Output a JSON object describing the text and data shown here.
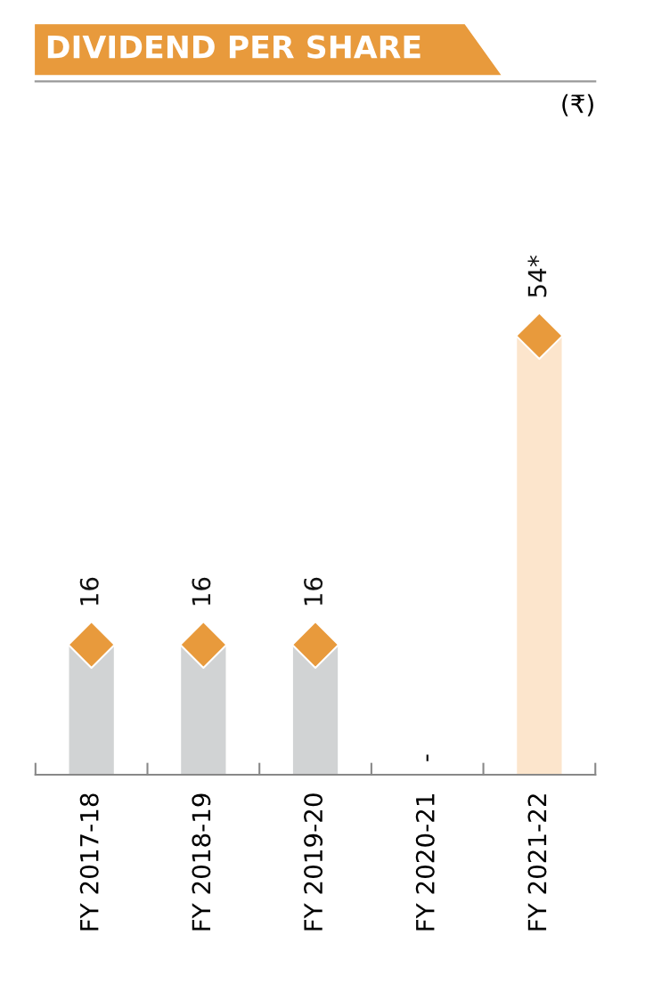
{
  "chart_data": {
    "type": "bar",
    "title": "DIVIDEND PER SHARE",
    "annotations": [
      "(₹)"
    ],
    "categories": [
      "FY 2017-18",
      "FY 2018-19",
      "FY 2019-20",
      "FY 2020-21",
      "FY 2021-22"
    ],
    "series": [
      {
        "colors": [
          "#d1d3d4",
          "#d1d3d4",
          "#d1d3d4",
          "#d1d3d4",
          "#fce5cc"
        ],
        "values": [
          16,
          16,
          16,
          0,
          54
        ],
        "value_labels": [
          "16",
          "16",
          "16",
          "-",
          "54*"
        ]
      },
      {
        "type": "scatter",
        "color": "#e89a3c",
        "values": [
          16,
          16,
          16,
          null,
          54
        ]
      }
    ],
    "marker": "diamond",
    "grid": false,
    "legend": false
  }
}
